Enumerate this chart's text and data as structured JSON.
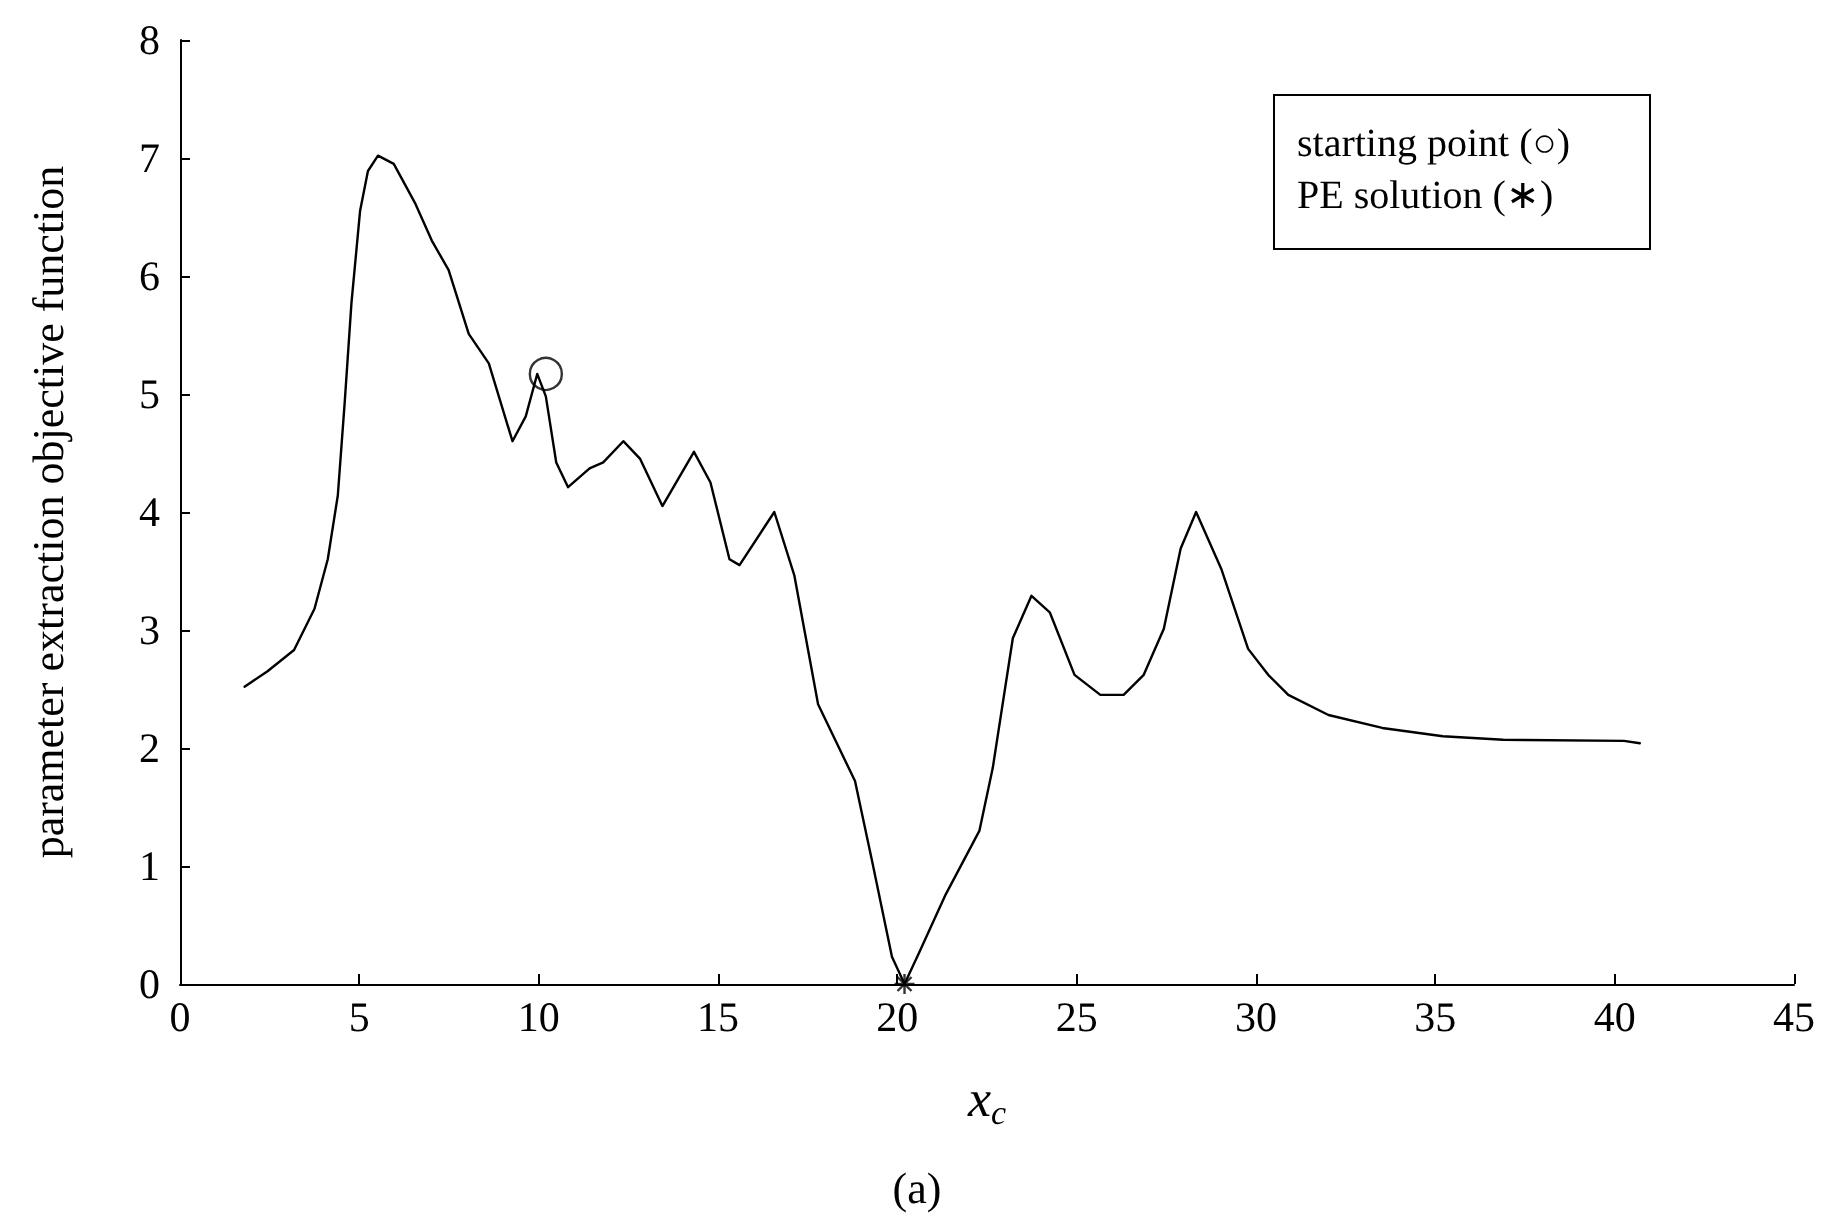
{
  "chart_data": {
    "type": "line",
    "title": "(a)",
    "xlabel": "x$_{c}$",
    "ylabel": "parameter extraction objective function",
    "annotations": [
      "starting point (○)",
      "PE solution (∗)"
    ],
    "xlim": [
      0,
      45
    ],
    "xticks": [
      0,
      5,
      10,
      15,
      20,
      25,
      30,
      35,
      40,
      45
    ],
    "ylim": [
      0,
      8
    ],
    "yticks": [
      0,
      1,
      2,
      3,
      4,
      5,
      6,
      7,
      8
    ],
    "grid": false,
    "series": [
      {
        "color": "#000000",
        "marker": "none",
        "x": [
          1.8,
          2.44,
          3.18,
          3.75,
          4.12,
          4.4,
          4.59,
          4.78,
          5.02,
          5.24,
          5.52,
          5.96,
          6.55,
          7.02,
          7.49,
          8.05,
          8.61,
          9.27,
          9.64,
          9.96,
          10.2,
          10.49,
          10.82,
          11.42,
          11.8,
          12.36,
          12.83,
          13.45,
          14.33,
          14.79,
          15.32,
          15.6,
          16.57,
          17.13,
          17.79,
          18.82,
          19.29,
          19.85,
          20.2,
          20.6,
          21.35,
          22.29,
          22.66,
          23.22,
          23.74,
          24.25,
          24.94,
          25.66,
          26.31,
          26.87,
          27.43,
          27.9,
          28.33,
          29.03,
          29.78,
          30.34,
          30.9,
          32.02,
          33.52,
          35.21,
          36.89,
          40.26,
          40.7
        ],
        "values": [
          2.52,
          2.65,
          2.83,
          3.18,
          3.6,
          4.14,
          4.92,
          5.77,
          6.55,
          6.89,
          7.02,
          6.95,
          6.62,
          6.3,
          6.05,
          5.51,
          5.26,
          4.6,
          4.81,
          5.17,
          4.98,
          4.42,
          4.21,
          4.37,
          4.42,
          4.6,
          4.45,
          4.05,
          4.51,
          4.25,
          3.6,
          3.55,
          4.0,
          3.46,
          2.37,
          1.72,
          1.05,
          0.23,
          0.0,
          0.26,
          0.76,
          1.3,
          1.83,
          2.93,
          3.29,
          3.15,
          2.62,
          2.45,
          2.45,
          2.62,
          3.01,
          3.69,
          4.0,
          3.52,
          2.84,
          2.62,
          2.45,
          2.28,
          2.17,
          2.1,
          2.07,
          2.06,
          2.04
        ]
      },
      {
        "type": "scatter",
        "color": "#000000",
        "marker": "circle",
        "x": [
          10.2
        ],
        "values": [
          5.17
        ]
      },
      {
        "type": "scatter",
        "color": "#000000",
        "marker": "cross",
        "x": [
          20.2
        ],
        "values": [
          0.0
        ]
      }
    ]
  }
}
